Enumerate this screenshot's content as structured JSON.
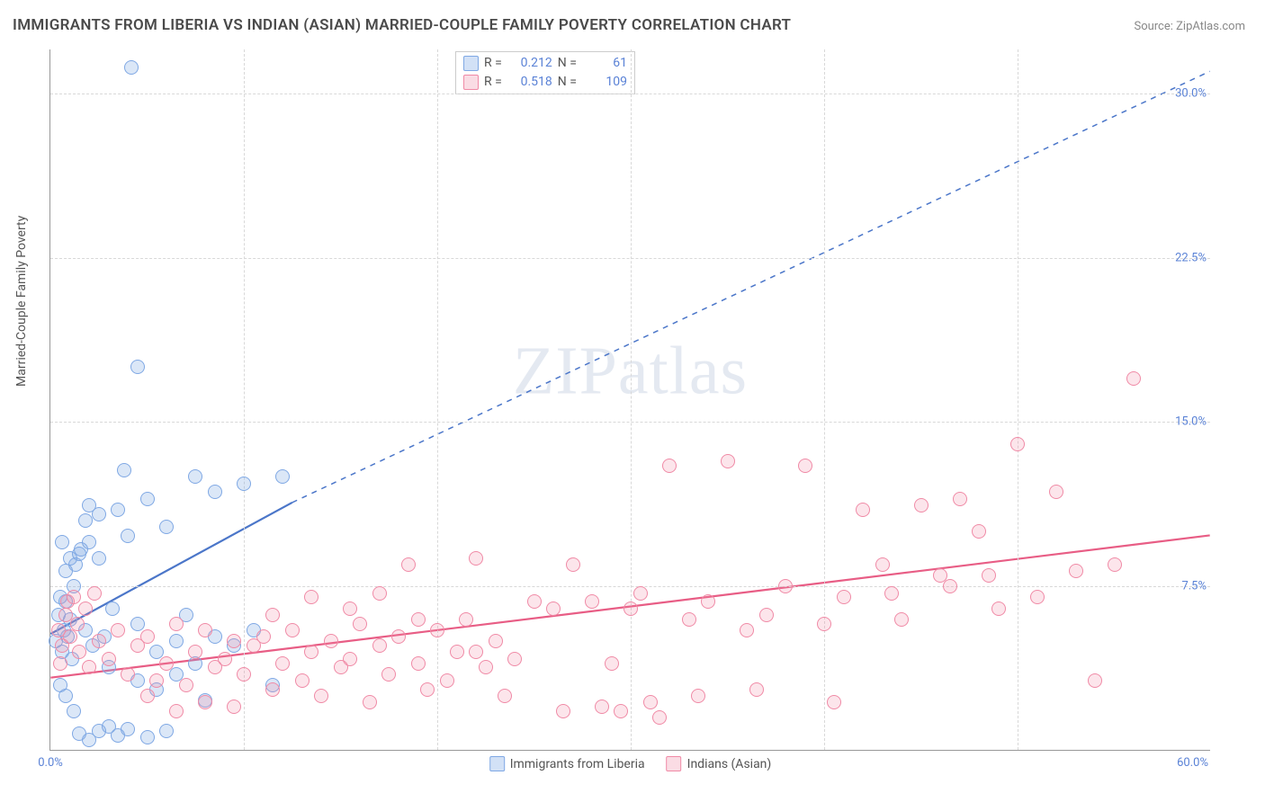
{
  "title": "IMMIGRANTS FROM LIBERIA VS INDIAN (ASIAN) MARRIED-COUPLE FAMILY POVERTY CORRELATION CHART",
  "source": "Source: ZipAtlas.com",
  "ylabel": "Married-Couple Family Poverty",
  "watermark_a": "ZIP",
  "watermark_b": "atlas",
  "chart": {
    "type": "scatter",
    "xlim": [
      0,
      60
    ],
    "ylim": [
      0,
      32
    ],
    "xticks": [
      0
    ],
    "xtick_labels": [
      "0.0%"
    ],
    "xtick_right": "60.0%",
    "yticks": [
      7.5,
      15.0,
      22.5,
      30.0
    ],
    "ytick_labels": [
      "7.5%",
      "15.0%",
      "22.5%",
      "30.0%"
    ],
    "vgrid": [
      10,
      20,
      30,
      40,
      50
    ],
    "background_color": "#ffffff",
    "grid_color": "#d8d8d8",
    "axis_color": "#999999",
    "marker_size": 16,
    "series": [
      {
        "name": "Immigrants from Liberia",
        "color": "#7fa8e4",
        "fill": "rgba(127,168,228,0.28)",
        "r": "0.212",
        "n": "61",
        "trend": {
          "x1": 0,
          "y1": 5.3,
          "x2": 12.5,
          "y2": 11.3,
          "dash_x2": 60,
          "dash_y2": 31,
          "width": 2.2,
          "color": "#4b76c9"
        },
        "points": [
          [
            0.3,
            5.0
          ],
          [
            0.4,
            6.2
          ],
          [
            0.5,
            7.0
          ],
          [
            0.6,
            4.5
          ],
          [
            0.7,
            5.5
          ],
          [
            0.8,
            6.8
          ],
          [
            0.9,
            5.2
          ],
          [
            1.0,
            6.0
          ],
          [
            1.1,
            4.2
          ],
          [
            1.2,
            7.5
          ],
          [
            0.5,
            3.0
          ],
          [
            0.8,
            2.5
          ],
          [
            1.2,
            1.8
          ],
          [
            1.5,
            0.8
          ],
          [
            2.0,
            0.5
          ],
          [
            2.5,
            0.9
          ],
          [
            3.0,
            1.1
          ],
          [
            3.5,
            0.7
          ],
          [
            4.0,
            1.0
          ],
          [
            5.0,
            0.6
          ],
          [
            6.0,
            0.9
          ],
          [
            1.8,
            5.5
          ],
          [
            2.2,
            4.8
          ],
          [
            2.8,
            5.2
          ],
          [
            3.2,
            6.5
          ],
          [
            4.5,
            5.8
          ],
          [
            5.5,
            4.5
          ],
          [
            6.5,
            5.0
          ],
          [
            7.0,
            6.2
          ],
          [
            8.0,
            2.3
          ],
          [
            1.5,
            9.0
          ],
          [
            2.0,
            9.5
          ],
          [
            2.5,
            8.8
          ],
          [
            1.8,
            10.5
          ],
          [
            3.5,
            11.0
          ],
          [
            4.0,
            9.8
          ],
          [
            5.0,
            11.5
          ],
          [
            6.0,
            10.2
          ],
          [
            7.5,
            12.5
          ],
          [
            8.5,
            11.8
          ],
          [
            10.0,
            12.2
          ],
          [
            12.0,
            12.5
          ],
          [
            3.0,
            3.8
          ],
          [
            4.5,
            3.2
          ],
          [
            5.5,
            2.8
          ],
          [
            6.5,
            3.5
          ],
          [
            7.5,
            4.0
          ],
          [
            8.5,
            5.2
          ],
          [
            9.5,
            4.8
          ],
          [
            10.5,
            5.5
          ],
          [
            11.5,
            3.0
          ],
          [
            0.8,
            8.2
          ],
          [
            1.0,
            8.8
          ],
          [
            1.3,
            8.5
          ],
          [
            1.6,
            9.2
          ],
          [
            2.0,
            11.2
          ],
          [
            2.5,
            10.8
          ],
          [
            3.8,
            12.8
          ],
          [
            4.2,
            31.2
          ],
          [
            4.5,
            17.5
          ],
          [
            0.6,
            9.5
          ]
        ]
      },
      {
        "name": "Indians (Asian)",
        "color": "#f08aa6",
        "fill": "rgba(240,138,166,0.22)",
        "r": "0.518",
        "n": "109",
        "trend": {
          "x1": 0,
          "y1": 3.3,
          "x2": 60,
          "y2": 9.8,
          "width": 2.2,
          "color": "#e85d85"
        },
        "points": [
          [
            0.5,
            4.0
          ],
          [
            1.0,
            5.2
          ],
          [
            1.5,
            4.5
          ],
          [
            2.0,
            3.8
          ],
          [
            2.5,
            5.0
          ],
          [
            3.0,
            4.2
          ],
          [
            3.5,
            5.5
          ],
          [
            4.0,
            3.5
          ],
          [
            4.5,
            4.8
          ],
          [
            5.0,
            5.2
          ],
          [
            5.5,
            3.2
          ],
          [
            6.0,
            4.0
          ],
          [
            6.5,
            5.8
          ],
          [
            7.0,
            3.0
          ],
          [
            7.5,
            4.5
          ],
          [
            8.0,
            5.5
          ],
          [
            8.5,
            3.8
          ],
          [
            9.0,
            4.2
          ],
          [
            9.5,
            5.0
          ],
          [
            10.0,
            3.5
          ],
          [
            10.5,
            4.8
          ],
          [
            11.0,
            5.2
          ],
          [
            11.5,
            2.8
          ],
          [
            12.0,
            4.0
          ],
          [
            12.5,
            5.5
          ],
          [
            13.0,
            3.2
          ],
          [
            13.5,
            4.5
          ],
          [
            14.0,
            2.5
          ],
          [
            14.5,
            5.0
          ],
          [
            15.0,
            3.8
          ],
          [
            15.5,
            4.2
          ],
          [
            16.0,
            5.8
          ],
          [
            16.5,
            2.2
          ],
          [
            17.0,
            4.8
          ],
          [
            17.5,
            3.5
          ],
          [
            18.0,
            5.2
          ],
          [
            18.5,
            8.5
          ],
          [
            19.0,
            4.0
          ],
          [
            19.5,
            2.8
          ],
          [
            20.0,
            5.5
          ],
          [
            20.5,
            3.2
          ],
          [
            21.0,
            4.5
          ],
          [
            21.5,
            6.0
          ],
          [
            22.0,
            8.8
          ],
          [
            22.5,
            3.8
          ],
          [
            23.0,
            5.0
          ],
          [
            23.5,
            2.5
          ],
          [
            24.0,
            4.2
          ],
          [
            25.0,
            6.8
          ],
          [
            26.0,
            6.5
          ],
          [
            27.0,
            8.5
          ],
          [
            28.0,
            6.8
          ],
          [
            28.5,
            2.0
          ],
          [
            29.0,
            4.0
          ],
          [
            30.0,
            6.5
          ],
          [
            30.5,
            7.2
          ],
          [
            31.0,
            2.2
          ],
          [
            32.0,
            13.0
          ],
          [
            33.0,
            6.0
          ],
          [
            33.5,
            2.5
          ],
          [
            34.0,
            6.8
          ],
          [
            35.0,
            13.2
          ],
          [
            36.0,
            5.5
          ],
          [
            36.5,
            2.8
          ],
          [
            37.0,
            6.2
          ],
          [
            38.0,
            7.5
          ],
          [
            39.0,
            13.0
          ],
          [
            40.0,
            5.8
          ],
          [
            40.5,
            2.2
          ],
          [
            41.0,
            7.0
          ],
          [
            42.0,
            11.0
          ],
          [
            43.0,
            8.5
          ],
          [
            43.5,
            7.2
          ],
          [
            44.0,
            6.0
          ],
          [
            45.0,
            11.2
          ],
          [
            46.0,
            8.0
          ],
          [
            46.5,
            7.5
          ],
          [
            47.0,
            11.5
          ],
          [
            48.0,
            10.0
          ],
          [
            48.5,
            8.0
          ],
          [
            49.0,
            6.5
          ],
          [
            50.0,
            14.0
          ],
          [
            51.0,
            7.0
          ],
          [
            52.0,
            11.8
          ],
          [
            53.0,
            8.2
          ],
          [
            54.0,
            3.2
          ],
          [
            55.0,
            8.5
          ],
          [
            56.0,
            17.0
          ],
          [
            29.5,
            1.8
          ],
          [
            31.5,
            1.5
          ],
          [
            0.8,
            6.2
          ],
          [
            1.2,
            7.0
          ],
          [
            1.8,
            6.5
          ],
          [
            2.3,
            7.2
          ],
          [
            0.4,
            5.5
          ],
          [
            0.6,
            4.8
          ],
          [
            0.9,
            6.8
          ],
          [
            1.4,
            5.8
          ],
          [
            26.5,
            1.8
          ],
          [
            22.0,
            4.5
          ],
          [
            19.0,
            6.0
          ],
          [
            17.0,
            7.2
          ],
          [
            15.5,
            6.5
          ],
          [
            13.5,
            7.0
          ],
          [
            11.5,
            6.2
          ],
          [
            9.5,
            2.0
          ],
          [
            8.0,
            2.2
          ],
          [
            6.5,
            1.8
          ],
          [
            5.0,
            2.5
          ]
        ]
      }
    ]
  },
  "legend_top": {
    "s1": {
      "r_label": "R =",
      "n_label": "N ="
    }
  },
  "legend_bottom": {
    "s1": "Immigrants from Liberia",
    "s2": "Indians (Asian)"
  }
}
